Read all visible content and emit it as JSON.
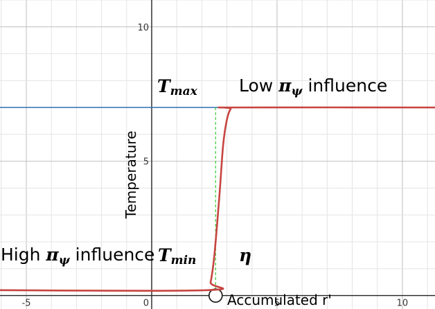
{
  "chart_data": {
    "type": "line",
    "xlabel": "Accumulated r'",
    "ylabel": "Temperature",
    "xlim": [
      -6.05,
      11.3
    ],
    "ylim": [
      -0.5,
      11
    ],
    "x_ticks": [
      -5,
      0,
      5,
      10
    ],
    "y_ticks": [
      5,
      10
    ],
    "x_tick_labels": [
      "-5",
      "0",
      "5",
      "10"
    ],
    "y_tick_labels": [
      "5",
      "10"
    ],
    "grid": true,
    "series": [
      {
        "color": "#c74440",
        "x": [
          -6.05,
          2.2,
          2.35,
          2.5,
          2.7,
          2.85,
          3.0,
          3.15,
          3.3,
          11.3
        ],
        "y": [
          0.2,
          0.2,
          0.5,
          1.5,
          3.7,
          5.6,
          6.55,
          6.95,
          7.0,
          7.0
        ]
      }
    ],
    "reference_lines": {
      "t_max_level": {
        "y": 7.0,
        "color": "#2d70b3"
      },
      "eta_marker": {
        "x": 2.55,
        "color": "#33cc33"
      }
    },
    "annotations": {
      "t_max": "T",
      "t_max_sub": "max",
      "t_min": "T",
      "t_min_sub": "min",
      "eta": "η",
      "low_prefix": "Low ",
      "high_prefix": "High ",
      "pi": "π",
      "psi": "ψ",
      "influence": " influence"
    }
  }
}
